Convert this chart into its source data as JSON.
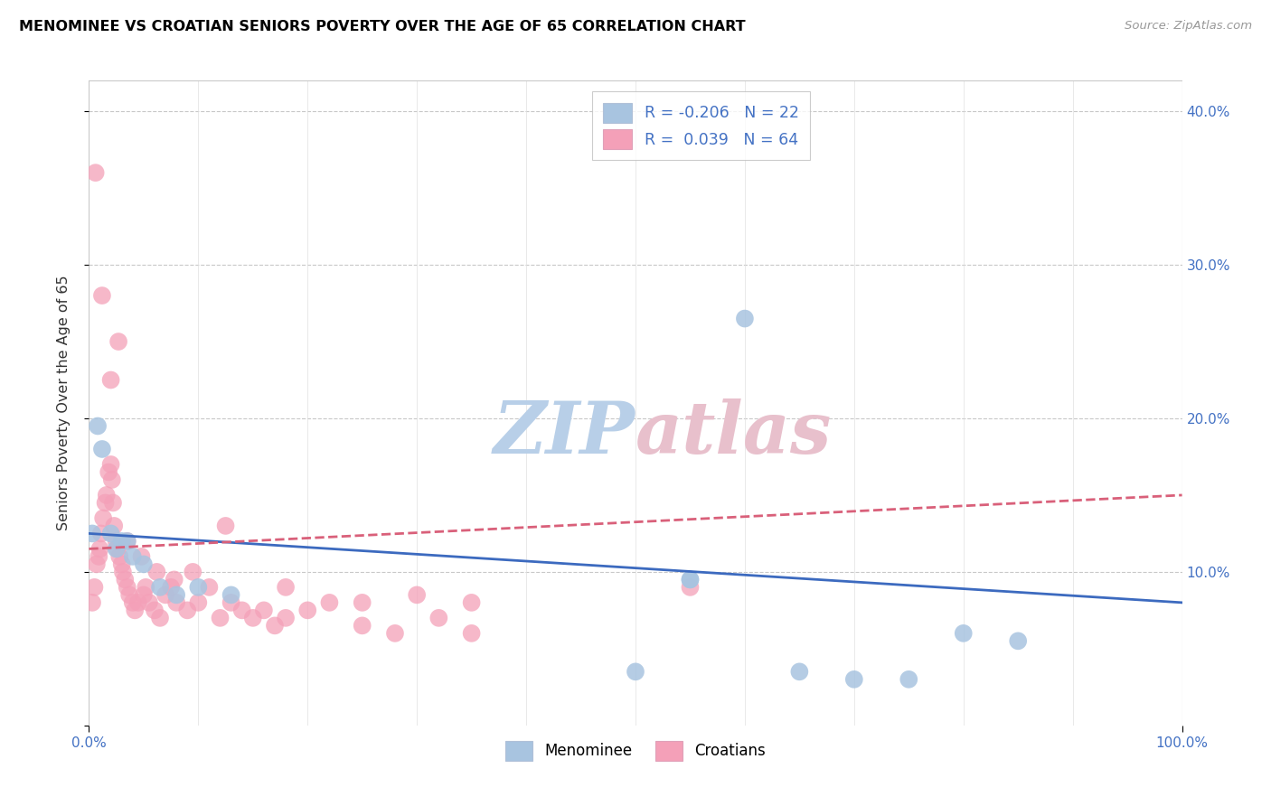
{
  "title": "MENOMINEE VS CROATIAN SENIORS POVERTY OVER THE AGE OF 65 CORRELATION CHART",
  "source": "Source: ZipAtlas.com",
  "ylabel": "Seniors Poverty Over the Age of 65",
  "xlim": [
    0,
    100
  ],
  "ylim": [
    0,
    42
  ],
  "menominee_R": -0.206,
  "menominee_N": 22,
  "croatian_R": 0.039,
  "croatian_N": 64,
  "menominee_color": "#a8c4e0",
  "croatian_color": "#f4a0b8",
  "menominee_line_color": "#3c6abf",
  "croatian_line_color": "#d9607a",
  "watermark_zip_color": "#b8cfe8",
  "watermark_atlas_color": "#e0b8c8",
  "legend_label_1": "Menominee",
  "legend_label_2": "Croatians",
  "menominee_x": [
    0.3,
    0.8,
    1.2,
    2.0,
    2.5,
    3.0,
    4.0,
    5.0,
    6.5,
    8.0,
    10.0,
    13.0,
    50.0,
    55.0,
    60.0,
    65.0,
    70.0,
    75.0,
    80.0,
    85.0,
    55.0,
    3.5
  ],
  "menominee_y": [
    12.5,
    19.5,
    18.0,
    12.5,
    11.5,
    12.0,
    11.0,
    10.5,
    9.0,
    8.5,
    9.0,
    8.5,
    3.5,
    9.5,
    26.5,
    3.5,
    3.0,
    3.0,
    6.0,
    5.5,
    9.5,
    12.0
  ],
  "croatian_x": [
    0.3,
    0.5,
    0.7,
    0.9,
    1.0,
    1.1,
    1.3,
    1.5,
    1.6,
    1.8,
    2.0,
    2.1,
    2.2,
    2.3,
    2.5,
    2.6,
    2.8,
    3.0,
    3.1,
    3.3,
    3.5,
    3.7,
    4.0,
    4.2,
    4.5,
    5.0,
    5.2,
    5.5,
    6.0,
    6.5,
    7.0,
    7.5,
    8.0,
    9.0,
    10.0,
    11.0,
    12.0,
    13.0,
    14.0,
    15.0,
    16.0,
    17.0,
    18.0,
    20.0,
    22.0,
    25.0,
    28.0,
    30.0,
    32.0,
    35.0,
    0.6,
    1.2,
    2.0,
    2.7,
    3.5,
    4.8,
    6.2,
    7.8,
    9.5,
    12.5,
    18.0,
    25.0,
    35.0,
    55.0
  ],
  "croatian_y": [
    8.0,
    9.0,
    10.5,
    11.0,
    11.5,
    12.5,
    13.5,
    14.5,
    15.0,
    16.5,
    17.0,
    16.0,
    14.5,
    13.0,
    12.0,
    11.5,
    11.0,
    10.5,
    10.0,
    9.5,
    9.0,
    8.5,
    8.0,
    7.5,
    8.0,
    8.5,
    9.0,
    8.0,
    7.5,
    7.0,
    8.5,
    9.0,
    8.0,
    7.5,
    8.0,
    9.0,
    7.0,
    8.0,
    7.5,
    7.0,
    7.5,
    6.5,
    7.0,
    7.5,
    8.0,
    6.5,
    6.0,
    8.5,
    7.0,
    6.0,
    36.0,
    28.0,
    22.5,
    25.0,
    12.0,
    11.0,
    10.0,
    9.5,
    10.0,
    13.0,
    9.0,
    8.0,
    8.0,
    9.0
  ]
}
